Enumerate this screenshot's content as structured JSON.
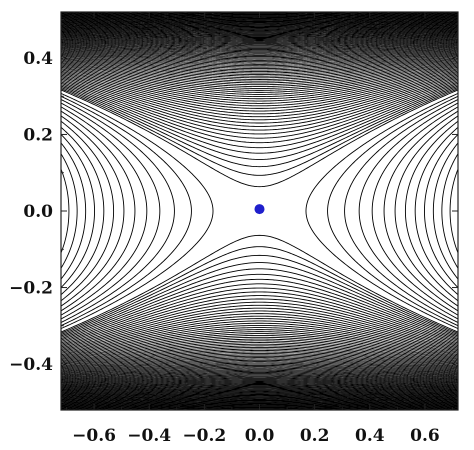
{
  "chart_data": {
    "type": "contour",
    "title": "",
    "xlabel": "",
    "ylabel": "",
    "xlim": [
      -0.72,
      0.72
    ],
    "ylim": [
      -0.52,
      0.52
    ],
    "x_ticks": [
      -0.6,
      -0.4,
      -0.2,
      0.0,
      0.2,
      0.4,
      0.6
    ],
    "y_ticks": [
      -0.4,
      -0.2,
      0.0,
      0.2,
      0.4
    ],
    "x_tick_labels": [
      "−0.6",
      "−0.4",
      "−0.2",
      "0.0",
      "0.2",
      "0.4",
      "0.6"
    ],
    "y_tick_labels": [
      "−0.4",
      "−0.2",
      "0.0",
      "0.2",
      "0.4"
    ],
    "contour_field": "saddle; dense contour lines above and below, hyperbolic branches opening left and right",
    "line_color": "#000000",
    "background_color": "#ffffff",
    "marker": {
      "x": 0.0,
      "y": 0.005,
      "color": "#1f1fcc",
      "label": "saddle point"
    }
  }
}
